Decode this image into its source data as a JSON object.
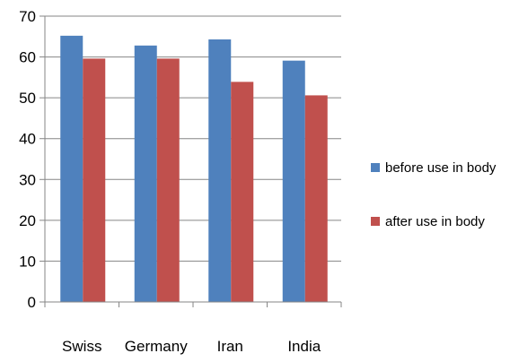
{
  "chart_data": {
    "type": "bar",
    "title": "",
    "xlabel": "",
    "ylabel": "",
    "categories": [
      "Swiss",
      "Germany",
      "Iran",
      "India"
    ],
    "series": [
      {
        "name": "before use in body",
        "color": "#4F81BD",
        "values": [
          65.2,
          62.8,
          64.3,
          59.1
        ]
      },
      {
        "name": "after use in body",
        "color": "#C0504D",
        "values": [
          59.6,
          59.6,
          53.9,
          50.6
        ]
      }
    ],
    "ylim": [
      0,
      70
    ],
    "yticks": [
      0,
      10,
      20,
      30,
      40,
      50,
      60,
      70
    ],
    "grid": true,
    "legend_position": "right"
  }
}
